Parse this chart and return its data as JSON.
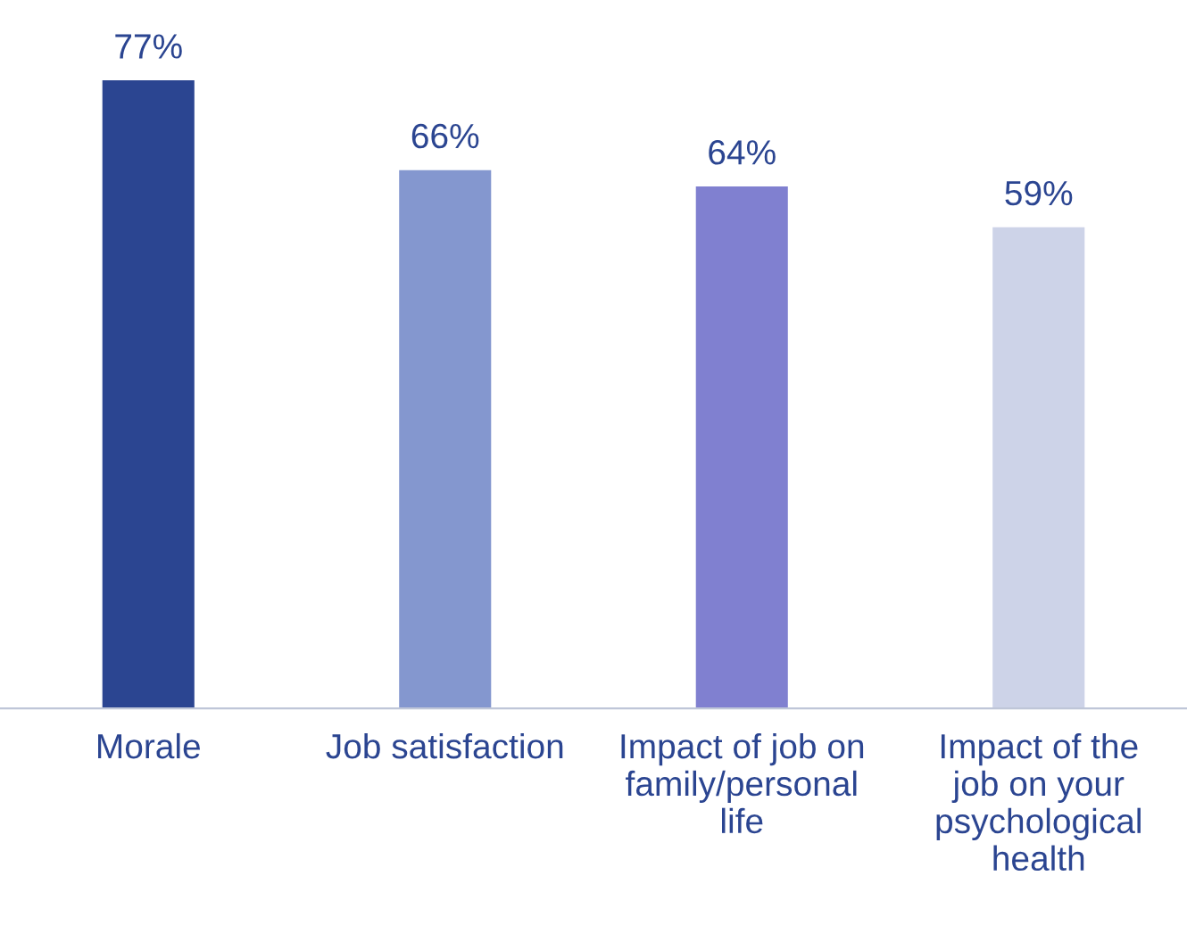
{
  "chart_data": {
    "type": "bar",
    "categories": [
      "Morale",
      "Job satisfaction",
      "Impact of job on family/personal life",
      "Impact of the job on your psychological health"
    ],
    "values": [
      77,
      66,
      64,
      59
    ],
    "colors": [
      "#2b4591",
      "#8497cf",
      "#8080d0",
      "#cdd3e8"
    ],
    "data_labels": true,
    "value_labels": [
      "77%",
      "66%",
      "64%",
      "59%"
    ],
    "grid": false,
    "legend": false
  }
}
